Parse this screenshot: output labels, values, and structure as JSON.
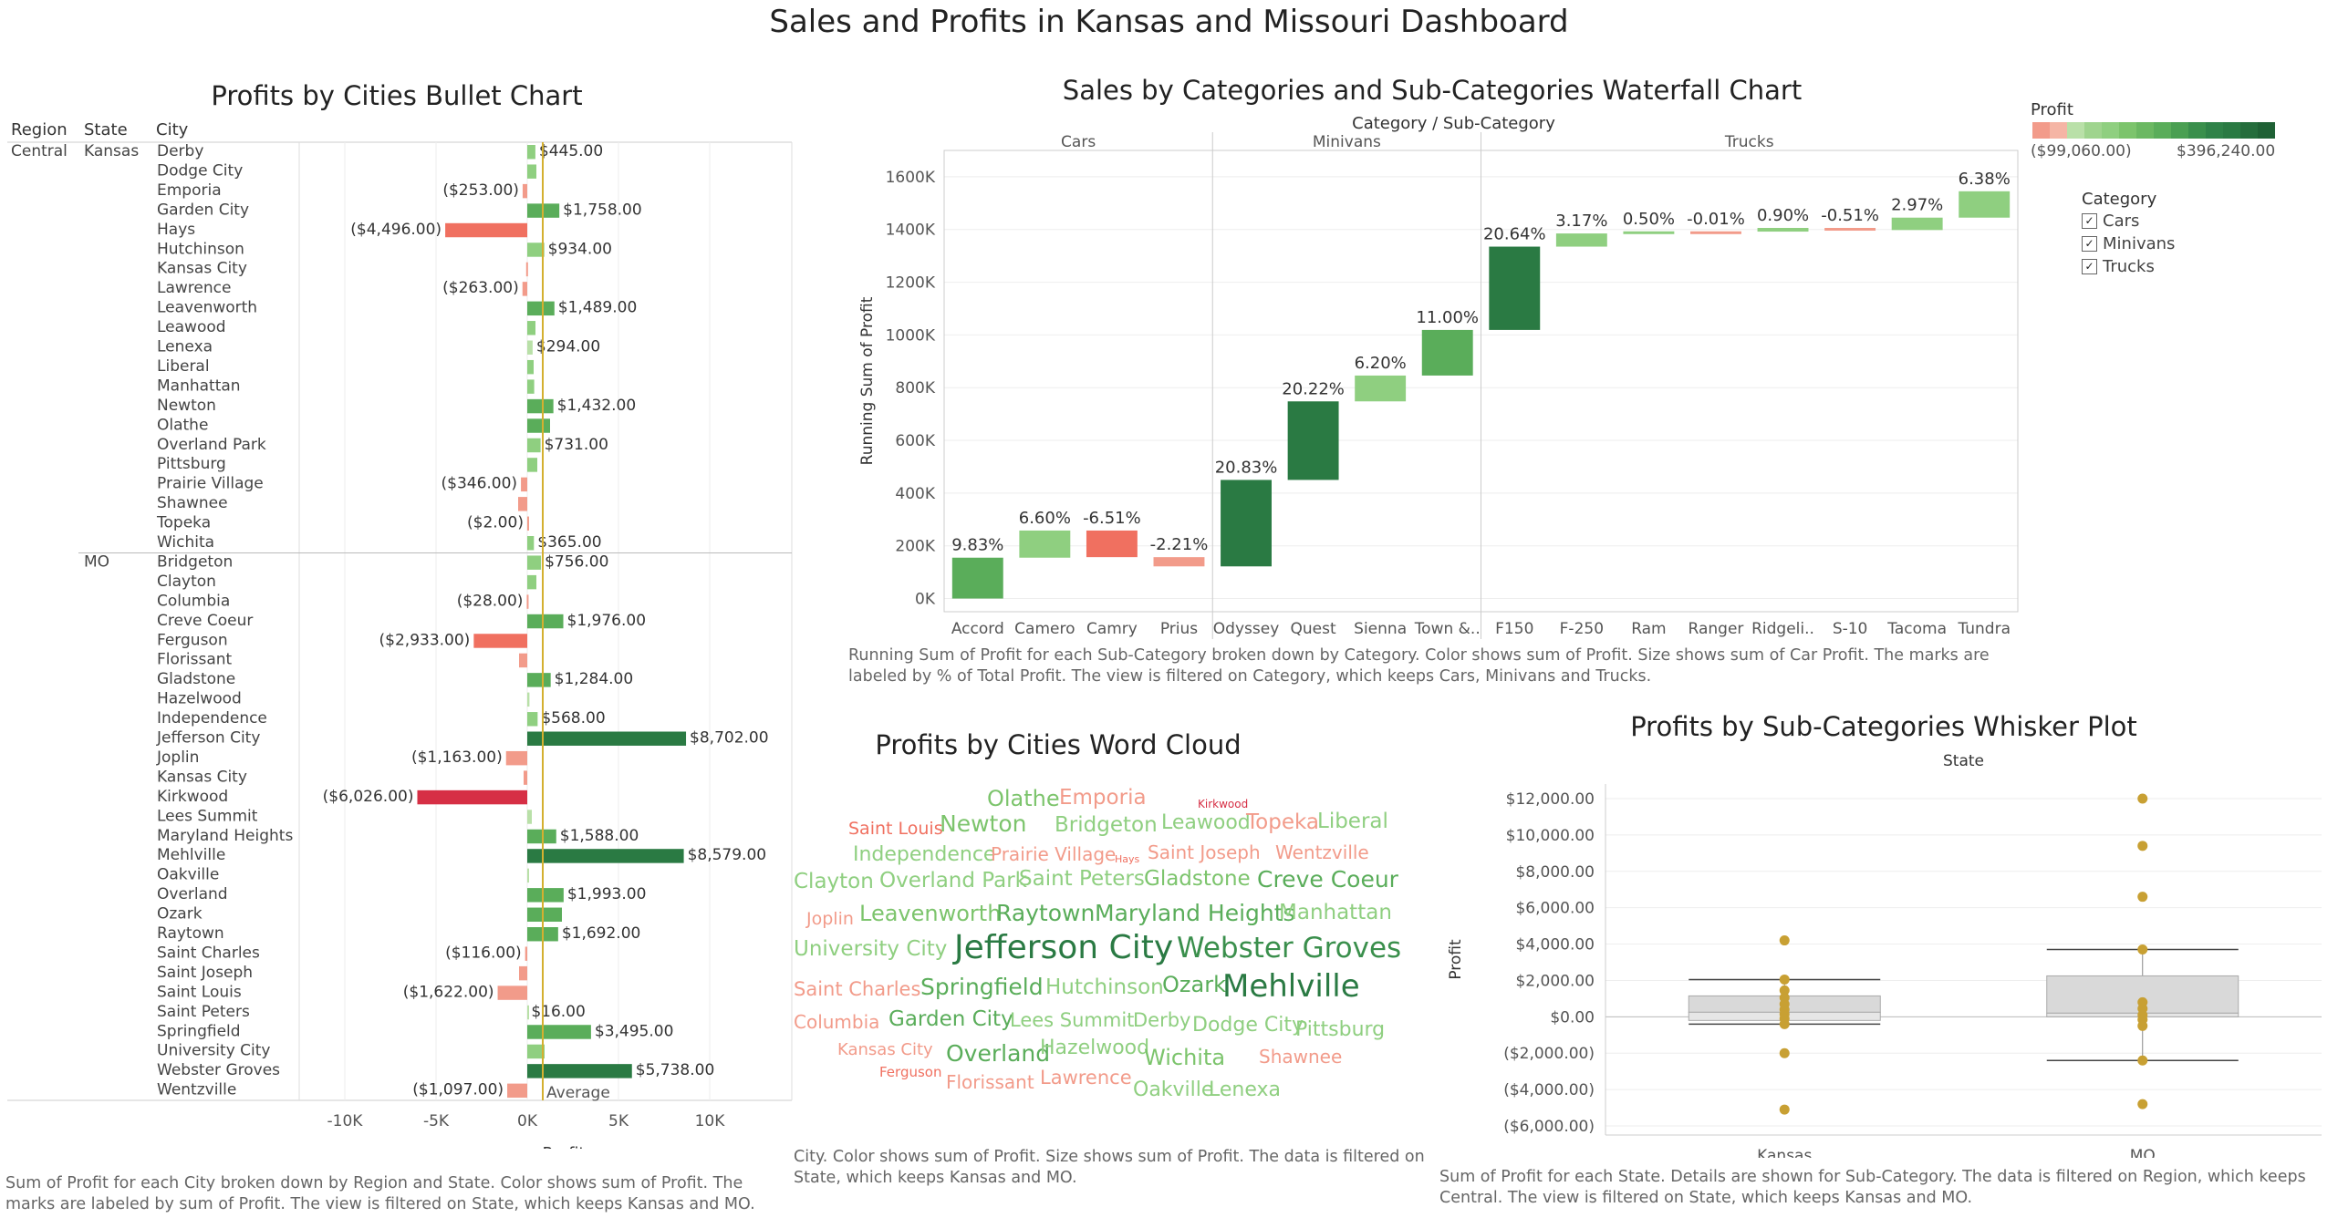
{
  "dashboard_title": "Sales and Profits in Kansas and Missouri Dashboard",
  "bullet": {
    "title": "Profits by Cities Bullet Chart",
    "col_headers": [
      "Region",
      "State",
      "City"
    ],
    "region": "Central",
    "x_label": "Profit",
    "x_ticks": [
      "-10K",
      "-5K",
      "0K",
      "5K",
      "10K"
    ],
    "average_label": "Average",
    "caption": "Sum of Profit for each City broken down by Region and State.  Color shows sum of Profit.  The marks are labeled by sum of Profit. The view is filtered on State, which keeps Kansas and MO."
  },
  "waterfall": {
    "title": "Sales by Categories and Sub-Categories Waterfall Chart",
    "header": "Category / Sub-Category",
    "y_label": "Running Sum of Profit",
    "y_ticks": [
      "0K",
      "200K",
      "400K",
      "600K",
      "800K",
      "1000K",
      "1200K",
      "1400K",
      "1600K"
    ],
    "caption": "Running Sum of Profit for each Sub-Category broken down by Category.  Color shows sum of Profit.  Size shows sum of Car Profit.  The marks are labeled by % of Total Profit. The view is filtered on Category, which keeps Cars, Minivans and Trucks."
  },
  "legend": {
    "profit_title": "Profit",
    "profit_min": "($99,060.00)",
    "profit_max": "$396,240.00",
    "category_title": "Category",
    "categories": [
      "Cars",
      "Minivans",
      "Trucks"
    ],
    "check": "✓"
  },
  "wordcloud": {
    "title": "Profits by Cities Word Cloud",
    "caption": "City.  Color shows sum of Profit.  Size shows sum of Profit. The data is filtered on State, which keeps Kansas and MO."
  },
  "whisker": {
    "title": "Profits by Sub-Categories Whisker Plot",
    "header": "State",
    "y_label": "Profit",
    "y_ticks": [
      "$12,000.00",
      "$10,000.00",
      "$8,000.00",
      "$6,000.00",
      "$4,000.00",
      "$2,000.00",
      "$0.00",
      "($2,000.00)",
      "($4,000.00)",
      "($6,000.00)"
    ],
    "caption": "Sum of Profit for each State.  Details are shown for Sub-Category. The data is filtered on Region, which keeps Central. The view is filtered on State, which keeps Kansas and MO."
  },
  "colors": {
    "dark_green": "#2a7a43",
    "mid_green": "#5aad5a",
    "light_green": "#8fcf80",
    "pale_green": "#b9e0a8",
    "light_red": "#f29b8a",
    "red": "#f07060",
    "crimson": "#d62f45",
    "average_line": "#d4b030",
    "dot": "#c8a033"
  },
  "chart_data": [
    {
      "type": "bar",
      "chart": "bullet",
      "groups": [
        {
          "state": "Kansas",
          "cities": [
            {
              "city": "Derby",
              "value": 445,
              "label": "$445.00"
            },
            {
              "city": "Dodge City",
              "value": 500,
              "label": ""
            },
            {
              "city": "Emporia",
              "value": -253,
              "label": "($253.00)"
            },
            {
              "city": "Garden City",
              "value": 1758,
              "label": "$1,758.00"
            },
            {
              "city": "Hays",
              "value": -4496,
              "label": "($4,496.00)"
            },
            {
              "city": "Hutchinson",
              "value": 934,
              "label": "$934.00"
            },
            {
              "city": "Kansas City",
              "value": -60,
              "label": ""
            },
            {
              "city": "Lawrence",
              "value": -263,
              "label": "($263.00)"
            },
            {
              "city": "Leavenworth",
              "value": 1489,
              "label": "$1,489.00"
            },
            {
              "city": "Leawood",
              "value": 450,
              "label": ""
            },
            {
              "city": "Lenexa",
              "value": 294,
              "label": "$294.00"
            },
            {
              "city": "Liberal",
              "value": 350,
              "label": ""
            },
            {
              "city": "Manhattan",
              "value": 380,
              "label": ""
            },
            {
              "city": "Newton",
              "value": 1432,
              "label": "$1,432.00"
            },
            {
              "city": "Olathe",
              "value": 1250,
              "label": ""
            },
            {
              "city": "Overland Park",
              "value": 731,
              "label": "$731.00"
            },
            {
              "city": "Pittsburg",
              "value": 550,
              "label": ""
            },
            {
              "city": "Prairie Village",
              "value": -346,
              "label": "($346.00)"
            },
            {
              "city": "Shawnee",
              "value": -500,
              "label": ""
            },
            {
              "city": "Topeka",
              "value": -2,
              "label": "($2.00)"
            },
            {
              "city": "Wichita",
              "value": 365,
              "label": "$365.00"
            }
          ]
        },
        {
          "state": "MO",
          "cities": [
            {
              "city": "Bridgeton",
              "value": 756,
              "label": "$756.00"
            },
            {
              "city": "Clayton",
              "value": 500,
              "label": ""
            },
            {
              "city": "Columbia",
              "value": -28,
              "label": "($28.00)"
            },
            {
              "city": "Creve Coeur",
              "value": 1976,
              "label": "$1,976.00"
            },
            {
              "city": "Ferguson",
              "value": -2933,
              "label": "($2,933.00)"
            },
            {
              "city": "Florissant",
              "value": -450,
              "label": ""
            },
            {
              "city": "Gladstone",
              "value": 1284,
              "label": "$1,284.00"
            },
            {
              "city": "Hazelwood",
              "value": 120,
              "label": ""
            },
            {
              "city": "Independence",
              "value": 568,
              "label": "$568.00"
            },
            {
              "city": "Jefferson City",
              "value": 8702,
              "label": "$8,702.00"
            },
            {
              "city": "Joplin",
              "value": -1163,
              "label": "($1,163.00)"
            },
            {
              "city": "Kansas City",
              "value": -200,
              "label": ""
            },
            {
              "city": "Kirkwood",
              "value": -6026,
              "label": "($6,026.00)"
            },
            {
              "city": "Lees Summit",
              "value": 250,
              "label": ""
            },
            {
              "city": "Maryland Heights",
              "value": 1588,
              "label": "$1,588.00"
            },
            {
              "city": "Mehlville",
              "value": 8579,
              "label": "$8,579.00"
            },
            {
              "city": "Oakville",
              "value": 100,
              "label": ""
            },
            {
              "city": "Overland",
              "value": 1993,
              "label": "$1,993.00"
            },
            {
              "city": "Ozark",
              "value": 1900,
              "label": ""
            },
            {
              "city": "Raytown",
              "value": 1692,
              "label": "$1,692.00"
            },
            {
              "city": "Saint Charles",
              "value": -116,
              "label": "($116.00)"
            },
            {
              "city": "Saint Joseph",
              "value": -450,
              "label": ""
            },
            {
              "city": "Saint Louis",
              "value": -1622,
              "label": "($1,622.00)"
            },
            {
              "city": "Saint Peters",
              "value": 16,
              "label": "$16.00"
            },
            {
              "city": "Springfield",
              "value": 3495,
              "label": "$3,495.00"
            },
            {
              "city": "University City",
              "value": 950,
              "label": ""
            },
            {
              "city": "Webster Groves",
              "value": 5738,
              "label": "$5,738.00"
            },
            {
              "city": "Wentzville",
              "value": -1097,
              "label": "($1,097.00)"
            }
          ]
        }
      ],
      "average": 850,
      "xlim": [
        -12500,
        14500
      ]
    },
    {
      "type": "bar",
      "chart": "waterfall",
      "categories": [
        {
          "name": "Cars",
          "subs": [
            {
              "name": "Accord",
              "start": 0,
              "end": 155000,
              "label": "9.83%"
            },
            {
              "name": "Camero",
              "start": 155000,
              "end": 258000,
              "label": "6.60%"
            },
            {
              "name": "Camry",
              "start": 258000,
              "end": 157000,
              "label": "-6.51%"
            },
            {
              "name": "Prius",
              "start": 157000,
              "end": 122000,
              "label": "-2.21%"
            }
          ]
        },
        {
          "name": "Minivans",
          "subs": [
            {
              "name": "Odyssey",
              "start": 122000,
              "end": 450000,
              "label": "20.83%"
            },
            {
              "name": "Quest",
              "start": 450000,
              "end": 748000,
              "label": "20.22%"
            },
            {
              "name": "Sienna",
              "start": 748000,
              "end": 846000,
              "label": "6.20%"
            },
            {
              "name": "Town &..",
              "start": 846000,
              "end": 1019000,
              "label": "11.00%"
            }
          ]
        },
        {
          "name": "Trucks",
          "subs": [
            {
              "name": "F150",
              "start": 1019000,
              "end": 1335000,
              "label": "20.64%"
            },
            {
              "name": "F-250",
              "start": 1335000,
              "end": 1385000,
              "label": "3.17%"
            },
            {
              "name": "Ram",
              "start": 1385000,
              "end": 1393000,
              "label": "0.50%"
            },
            {
              "name": "Ranger",
              "start": 1393000,
              "end": 1392000,
              "label": "-0.01%"
            },
            {
              "name": "Ridgeli..",
              "start": 1392000,
              "end": 1406000,
              "label": "0.90%"
            },
            {
              "name": "S-10",
              "start": 1406000,
              "end": 1398000,
              "label": "-0.51%"
            },
            {
              "name": "Tacoma",
              "start": 1398000,
              "end": 1445000,
              "label": "2.97%"
            },
            {
              "name": "Tundra",
              "start": 1445000,
              "end": 1545000,
              "label": "6.38%"
            }
          ]
        }
      ],
      "ylim": [
        -50000,
        1700000
      ]
    },
    {
      "type": "scatter",
      "chart": "whisker",
      "states": [
        {
          "name": "Kansas",
          "points": [
            4200,
            2050,
            1450,
            1050,
            700,
            400,
            150,
            -100,
            -400,
            -2000,
            -5100
          ],
          "q1": -200,
          "median": 250,
          "q3": 1150,
          "whisker_low": -400,
          "whisker_high": 2050
        },
        {
          "name": "MO",
          "points": [
            12000,
            9400,
            6600,
            3700,
            800,
            450,
            100,
            -150,
            -500,
            -2400,
            -4800
          ],
          "q1": 0,
          "median": 200,
          "q3": 2250,
          "whisker_low": -2400,
          "whisker_high": 3700
        }
      ],
      "ylim": [
        -6500,
        12800
      ]
    }
  ],
  "wordcloud_words": [
    {
      "t": "Olathe",
      "s": 24,
      "c": "#7cc46c",
      "x": 1082,
      "y": 884
    },
    {
      "t": "Emporia",
      "s": 23,
      "c": "#f29b8a",
      "x": 1161,
      "y": 884
    },
    {
      "t": "Kirkwood",
      "s": 12,
      "c": "#d62f45",
      "x": 1313,
      "y": 886
    },
    {
      "t": "Saint Louis",
      "s": 19,
      "c": "#f07060",
      "x": 930,
      "y": 916
    },
    {
      "t": "Newton",
      "s": 25,
      "c": "#7cc46c",
      "x": 1030,
      "y": 912
    },
    {
      "t": "Bridgeton",
      "s": 23,
      "c": "#8fcf80",
      "x": 1156,
      "y": 914
    },
    {
      "t": "Leawood",
      "s": 22,
      "c": "#8fcf80",
      "x": 1273,
      "y": 911
    },
    {
      "t": "Topeka",
      "s": 23,
      "c": "#f29b8a",
      "x": 1366,
      "y": 911
    },
    {
      "t": "Liberal",
      "s": 23,
      "c": "#8fcf80",
      "x": 1444,
      "y": 910
    },
    {
      "t": "Independence",
      "s": 22,
      "c": "#8fcf80",
      "x": 935,
      "y": 946
    },
    {
      "t": "Prairie Village",
      "s": 20,
      "c": "#f29b8a",
      "x": 1086,
      "y": 944
    },
    {
      "t": "Hays",
      "s": 11,
      "c": "#f07060",
      "x": 1222,
      "y": 946
    },
    {
      "t": "Saint Joseph",
      "s": 20,
      "c": "#f29b8a",
      "x": 1258,
      "y": 942
    },
    {
      "t": "Wentzville",
      "s": 20,
      "c": "#f29b8a",
      "x": 1398,
      "y": 942
    },
    {
      "t": "Clayton",
      "s": 23,
      "c": "#8fcf80",
      "x": 870,
      "y": 976
    },
    {
      "t": "Overland Park",
      "s": 23,
      "c": "#8fcf80",
      "x": 964,
      "y": 975
    },
    {
      "t": "Saint Peters",
      "s": 23,
      "c": "#8fcf80",
      "x": 1117,
      "y": 973
    },
    {
      "t": "Gladstone",
      "s": 23,
      "c": "#7cc46c",
      "x": 1254,
      "y": 973
    },
    {
      "t": "Creve Coeur",
      "s": 25,
      "c": "#5aad5a",
      "x": 1378,
      "y": 973
    },
    {
      "t": "Joplin",
      "s": 19,
      "c": "#f29b8a",
      "x": 884,
      "y": 1015
    },
    {
      "t": "Leavenworth",
      "s": 24,
      "c": "#7cc46c",
      "x": 942,
      "y": 1010
    },
    {
      "t": "Raytown",
      "s": 25,
      "c": "#5aad5a",
      "x": 1092,
      "y": 1010
    },
    {
      "t": "Maryland Heights",
      "s": 25,
      "c": "#5aad5a",
      "x": 1200,
      "y": 1010
    },
    {
      "t": "Manhattan",
      "s": 23,
      "c": "#8fcf80",
      "x": 1402,
      "y": 1010
    },
    {
      "t": "University City",
      "s": 23,
      "c": "#8fcf80",
      "x": 870,
      "y": 1050
    },
    {
      "t": "Jefferson City",
      "s": 36,
      "c": "#2a7a43",
      "x": 1046,
      "y": 1053
    },
    {
      "t": "Webster Groves",
      "s": 31,
      "c": "#3a8f4c",
      "x": 1290,
      "y": 1051
    },
    {
      "t": "Saint Charles",
      "s": 21,
      "c": "#f29b8a",
      "x": 870,
      "y": 1093
    },
    {
      "t": "Springfield",
      "s": 25,
      "c": "#5aad5a",
      "x": 1009,
      "y": 1091
    },
    {
      "t": "Hutchinson",
      "s": 23,
      "c": "#8fcf80",
      "x": 1146,
      "y": 1092
    },
    {
      "t": "Ozark",
      "s": 24,
      "c": "#5aad5a",
      "x": 1274,
      "y": 1088
    },
    {
      "t": "Mehlville",
      "s": 34,
      "c": "#2a7a43",
      "x": 1340,
      "y": 1094
    },
    {
      "t": "Columbia",
      "s": 20,
      "c": "#f29b8a",
      "x": 870,
      "y": 1128
    },
    {
      "t": "Garden City",
      "s": 23,
      "c": "#5aad5a",
      "x": 974,
      "y": 1127
    },
    {
      "t": "Lees Summit",
      "s": 21,
      "c": "#8fcf80",
      "x": 1107,
      "y": 1127
    },
    {
      "t": "Derby",
      "s": 21,
      "c": "#8fcf80",
      "x": 1242,
      "y": 1127
    },
    {
      "t": "Dodge City",
      "s": 22,
      "c": "#8fcf80",
      "x": 1307,
      "y": 1133
    },
    {
      "t": "Pittsburg",
      "s": 22,
      "c": "#8fcf80",
      "x": 1420,
      "y": 1138
    },
    {
      "t": "Kansas City",
      "s": 18,
      "c": "#f29b8a",
      "x": 918,
      "y": 1158
    },
    {
      "t": "Overland",
      "s": 25,
      "c": "#5aad5a",
      "x": 1037,
      "y": 1164
    },
    {
      "t": "Hazelwood",
      "s": 22,
      "c": "#8fcf80",
      "x": 1140,
      "y": 1158
    },
    {
      "t": "Wichita",
      "s": 24,
      "c": "#7cc46c",
      "x": 1254,
      "y": 1168
    },
    {
      "t": "Shawnee",
      "s": 20,
      "c": "#f29b8a",
      "x": 1380,
      "y": 1166
    },
    {
      "t": "Ferguson",
      "s": 15,
      "c": "#f07060",
      "x": 964,
      "y": 1182
    },
    {
      "t": "Florissant",
      "s": 20,
      "c": "#f29b8a",
      "x": 1037,
      "y": 1194
    },
    {
      "t": "Lawrence",
      "s": 21,
      "c": "#f29b8a",
      "x": 1140,
      "y": 1190
    },
    {
      "t": "Oakville",
      "s": 22,
      "c": "#8fcf80",
      "x": 1242,
      "y": 1204
    },
    {
      "t": "Lenexa",
      "s": 22,
      "c": "#8fcf80",
      "x": 1325,
      "y": 1204
    }
  ]
}
